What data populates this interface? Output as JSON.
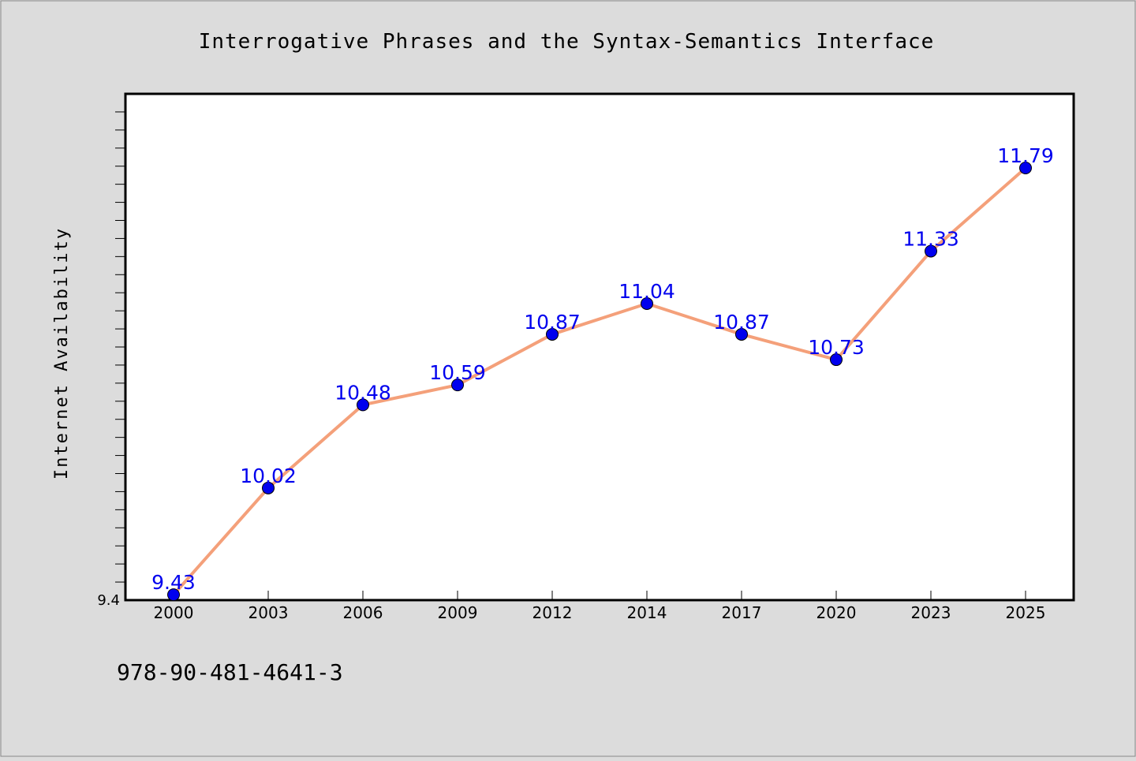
{
  "chart_data": {
    "type": "line",
    "title": "Interrogative Phrases and the Syntax-Semantics Interface",
    "xlabel": "",
    "ylabel": "Internet Availability",
    "categories": [
      "2000",
      "2003",
      "2006",
      "2009",
      "2012",
      "2014",
      "2017",
      "2020",
      "2023",
      "2025"
    ],
    "series": [
      {
        "values": [
          9.43,
          10.02,
          10.48,
          10.59,
          10.87,
          11.04,
          10.87,
          10.73,
          11.33,
          11.79
        ]
      }
    ],
    "data_labels": [
      "9.43",
      "10.02",
      "10.48",
      "10.59",
      "10.87",
      "11.04",
      "10.87",
      "10.73",
      "11.33",
      "11.79"
    ],
    "ylim": [
      9.4,
      12.2
    ],
    "y_tick_labels": [
      "9.4"
    ],
    "grid": false,
    "legend": "none",
    "line_color": "#f4a07a",
    "marker_color": "#0000ee",
    "label_color": "#0000ee"
  },
  "footer": {
    "isbn": "978-90-481-4641-3"
  }
}
